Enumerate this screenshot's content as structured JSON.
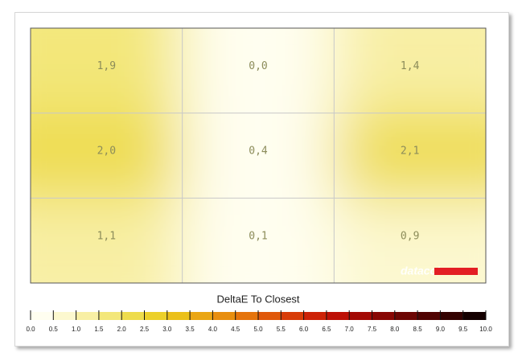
{
  "chart_data": {
    "type": "heatmap",
    "title": "DeltaE To Closest",
    "watermark": "datacolor",
    "rows": 3,
    "cols": 3,
    "values": [
      1.9,
      0.0,
      1.4,
      2.0,
      0.4,
      2.1,
      1.1,
      0.1,
      0.9
    ],
    "value_labels": [
      "1,9",
      "0,0",
      "1,4",
      "2,0",
      "0,4",
      "2,1",
      "1,1",
      "0,1",
      "0,9"
    ],
    "clim": [
      0,
      10
    ],
    "cticks": [
      {
        "value": 0,
        "label": "0.0"
      },
      {
        "value": 0.5,
        "label": "0.5"
      },
      {
        "value": 1,
        "label": "1.0"
      },
      {
        "value": 1.5,
        "label": "1.5"
      },
      {
        "value": 2,
        "label": "2.0"
      },
      {
        "value": 2.5,
        "label": "2.5"
      },
      {
        "value": 3,
        "label": "3.0"
      },
      {
        "value": 3.5,
        "label": "3.5"
      },
      {
        "value": 4,
        "label": "4.0"
      },
      {
        "value": 4.5,
        "label": "4.5"
      },
      {
        "value": 5,
        "label": "5.0"
      },
      {
        "value": 5.5,
        "label": "5.5"
      },
      {
        "value": 6,
        "label": "6.0"
      },
      {
        "value": 6.5,
        "label": "6.5"
      },
      {
        "value": 7,
        "label": "7.0"
      },
      {
        "value": 7.5,
        "label": "7.5"
      },
      {
        "value": 8,
        "label": "8.0"
      },
      {
        "value": 8.5,
        "label": "8.5"
      },
      {
        "value": 9,
        "label": "9.0"
      },
      {
        "value": 9.5,
        "label": "9.5"
      },
      {
        "value": 10,
        "label": "10.0"
      }
    ],
    "colorscale": [
      "#fffef0",
      "#fcf8cf",
      "#f8efa4",
      "#f3e77a",
      "#eedc4c",
      "#ecd02a",
      "#ebc01a",
      "#eaa614",
      "#e88e0f",
      "#e5740c",
      "#e0580a",
      "#d83c08",
      "#cd2207",
      "#bd1006",
      "#a30a05",
      "#880704",
      "#6c0503",
      "#500302",
      "#330201",
      "#140000"
    ],
    "grid": true
  }
}
